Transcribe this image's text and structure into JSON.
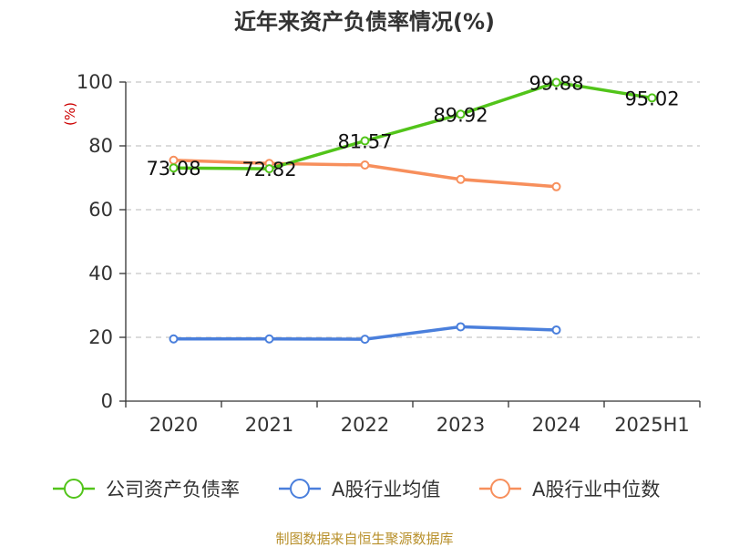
{
  "chart_data": {
    "type": "line",
    "title": "近年来资产负债率情况(%)",
    "unit_label": "(%)",
    "categories": [
      "2020",
      "2021",
      "2022",
      "2023",
      "2024",
      "2025H1"
    ],
    "y_ticks": [
      "0",
      "20",
      "40",
      "60",
      "80",
      "100"
    ],
    "ylim": [
      0,
      100
    ],
    "grid": true,
    "legend_position": "bottom",
    "series": [
      {
        "name": "公司资产负债率",
        "color": "#52c41a",
        "values": [
          73.08,
          72.82,
          81.57,
          89.92,
          99.88,
          95.02
        ],
        "labels": [
          "73.08",
          "72.82",
          "81.57",
          "89.92",
          "99.88",
          "95.02"
        ]
      },
      {
        "name": "A股行业均值",
        "color": "#4a7fdc",
        "values": [
          19.5,
          19.5,
          19.4,
          23.3,
          22.3,
          null
        ]
      },
      {
        "name": "A股行业中位数",
        "color": "#f78f5c",
        "values": [
          75.5,
          74.5,
          74.0,
          69.5,
          67.2,
          null
        ]
      }
    ],
    "source": "制图数据来自恒生聚源数据库"
  }
}
